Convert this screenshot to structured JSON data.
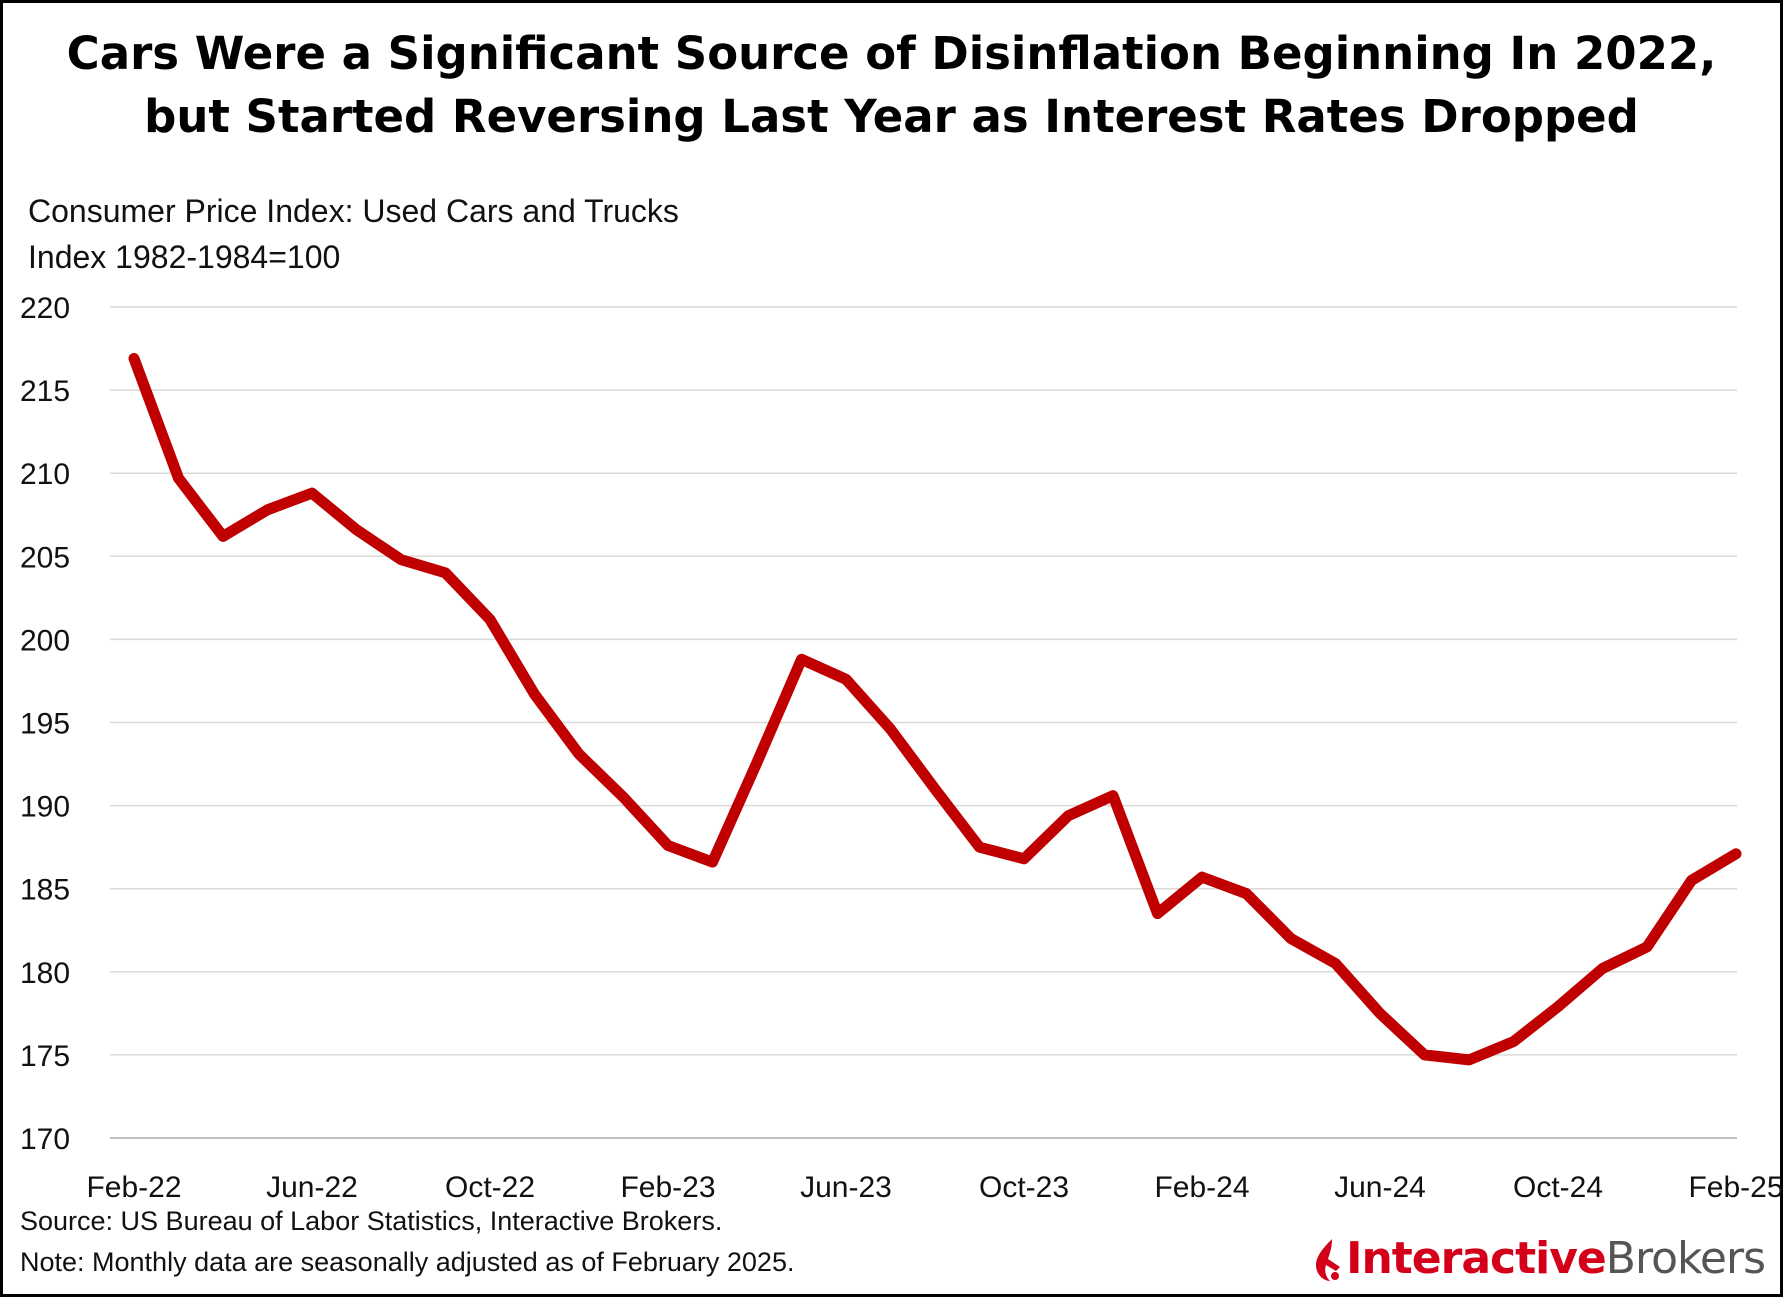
{
  "title_lines": [
    "Cars Were a Significant Source of Disinflation Beginning In 2022,",
    "but Started Reversing Last Year as Interest Rates Dropped"
  ],
  "subtitle": "Consumer Price Index: Used Cars and Trucks",
  "unit_note": "Index 1982-1984=100",
  "source": "Source: US Bureau of Labor Statistics, Interactive Brokers.",
  "note": "Note: Monthly data are seasonally adjusted as of February 2025.",
  "logo": {
    "part1": "Interactive",
    "part2": "Brokers",
    "accent_color": "#d4001a",
    "text_color": "#555555"
  },
  "chart_data": {
    "type": "line",
    "title": "Cars Were a Significant Source of Disinflation Beginning In 2022, but Started Reversing Last Year as Interest Rates Dropped",
    "ylabel": "Index 1982-1984=100",
    "xlabel": "",
    "ylim": [
      170,
      220
    ],
    "yticks": [
      170,
      175,
      180,
      185,
      190,
      195,
      200,
      205,
      210,
      215,
      220
    ],
    "grid": true,
    "line_color": "#c00000",
    "x_tick_labels": [
      "Feb-22",
      "Jun-22",
      "Oct-22",
      "Feb-23",
      "Jun-23",
      "Oct-23",
      "Feb-24",
      "Jun-24",
      "Oct-24",
      "Feb-25"
    ],
    "x_tick_every": 4,
    "series": [
      {
        "name": "Consumer Price Index: Used Cars and Trucks",
        "x": [
          "Feb-22",
          "Mar-22",
          "Apr-22",
          "May-22",
          "Jun-22",
          "Jul-22",
          "Aug-22",
          "Sep-22",
          "Oct-22",
          "Nov-22",
          "Dec-22",
          "Jan-23",
          "Feb-23",
          "Mar-23",
          "Apr-23",
          "May-23",
          "Jun-23",
          "Jul-23",
          "Aug-23",
          "Sep-23",
          "Oct-23",
          "Nov-23",
          "Dec-23",
          "Jan-24",
          "Feb-24",
          "Mar-24",
          "Apr-24",
          "May-24",
          "Jun-24",
          "Jul-24",
          "Aug-24",
          "Sep-24",
          "Oct-24",
          "Nov-24",
          "Dec-24",
          "Jan-25",
          "Feb-25"
        ],
        "values": [
          216.9,
          209.7,
          206.2,
          207.8,
          208.8,
          206.6,
          204.8,
          204.0,
          201.2,
          196.7,
          193.1,
          190.5,
          187.6,
          186.6,
          192.6,
          198.8,
          197.6,
          194.6,
          191.0,
          187.5,
          186.8,
          189.4,
          190.6,
          183.5,
          185.7,
          184.7,
          182.0,
          180.5,
          177.5,
          175.0,
          174.7,
          175.8,
          177.9,
          180.2,
          181.5,
          185.5,
          187.1
        ]
      }
    ]
  }
}
